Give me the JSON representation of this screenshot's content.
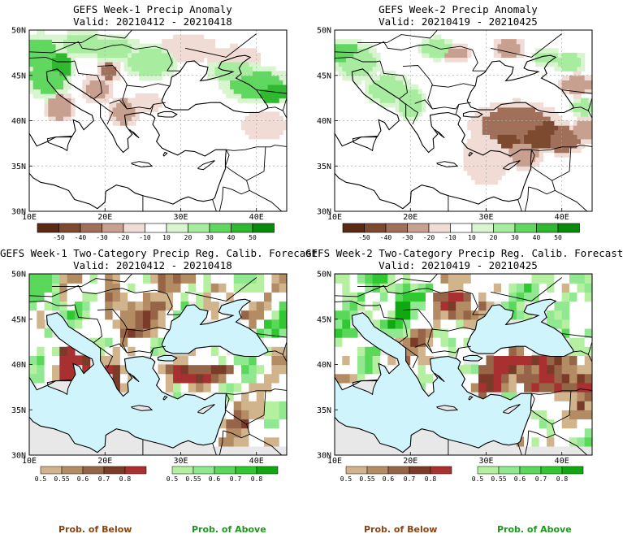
{
  "panels": [
    {
      "title": "GEFS Week-1 Precip Anomaly",
      "valid": "Valid: 20210412 - 20210418",
      "lat_ticks": [
        "50N",
        "45N",
        "40N",
        "35N",
        "30N"
      ],
      "lon_ticks": [
        "10E",
        "20E",
        "30E",
        "40E"
      ],
      "colorbar_ticks": [
        "-50",
        "-40",
        "-30",
        "-20",
        "-10",
        "10",
        "20",
        "30",
        "40",
        "50"
      ]
    },
    {
      "title": "GEFS Week-2 Precip Anomaly",
      "valid": "Valid: 20210419 - 20210425",
      "lat_ticks": [
        "50N",
        "45N",
        "40N",
        "35N",
        "30N"
      ],
      "lon_ticks": [
        "10E",
        "20E",
        "30E",
        "40E"
      ],
      "colorbar_ticks": [
        "-50",
        "-40",
        "-30",
        "-20",
        "-10",
        "10",
        "20",
        "30",
        "40",
        "50"
      ]
    },
    {
      "title": "GEFS Week-1 Two-Category Precip Reg. Calib. Forecast",
      "valid": "Valid: 20210412 - 20210418",
      "lat_ticks": [
        "50N",
        "45N",
        "40N",
        "35N",
        "30N"
      ],
      "lon_ticks": [
        "10E",
        "20E",
        "30E",
        "40E"
      ],
      "below_ticks": [
        "0.5",
        "0.55",
        "0.6",
        "0.7",
        "0.8"
      ],
      "above_ticks": [
        "0.5",
        "0.55",
        "0.6",
        "0.7",
        "0.8"
      ],
      "below_label": "Prob. of Below",
      "above_label": "Prob. of Above"
    },
    {
      "title": "GEFS Week-2 Two-Category Precip Reg. Calib. Forecast",
      "valid": "Valid: 20210419 - 20210425",
      "lat_ticks": [
        "50N",
        "45N",
        "40N",
        "35N",
        "30N"
      ],
      "lon_ticks": [
        "10E",
        "20E",
        "30E",
        "40E"
      ],
      "below_ticks": [
        "0.5",
        "0.55",
        "0.6",
        "0.7",
        "0.8"
      ],
      "above_ticks": [
        "0.5",
        "0.55",
        "0.6",
        "0.7",
        "0.8"
      ],
      "below_label": "Prob. of Below",
      "above_label": "Prob. of Above"
    }
  ],
  "colors": {
    "anomaly_scale": [
      "#5a2a14",
      "#7d4a30",
      "#a0705a",
      "#c8a090",
      "#f0dcd4",
      "#ffffff",
      "#d8f5d0",
      "#a8eca0",
      "#60d860",
      "#30b830",
      "#0a8a0a"
    ],
    "below_scale": [
      "#d2b48c",
      "#b48c64",
      "#966446",
      "#7a3c28",
      "#a83030"
    ],
    "above_scale": [
      "#b4f0a0",
      "#90e890",
      "#5ad85a",
      "#30c830",
      "#10a810"
    ],
    "ocean": "#d0f4fc",
    "no_signal_land": "#e8e8e8",
    "below_label_color": "#8b4513",
    "above_label_color": "#1a9a1a"
  }
}
